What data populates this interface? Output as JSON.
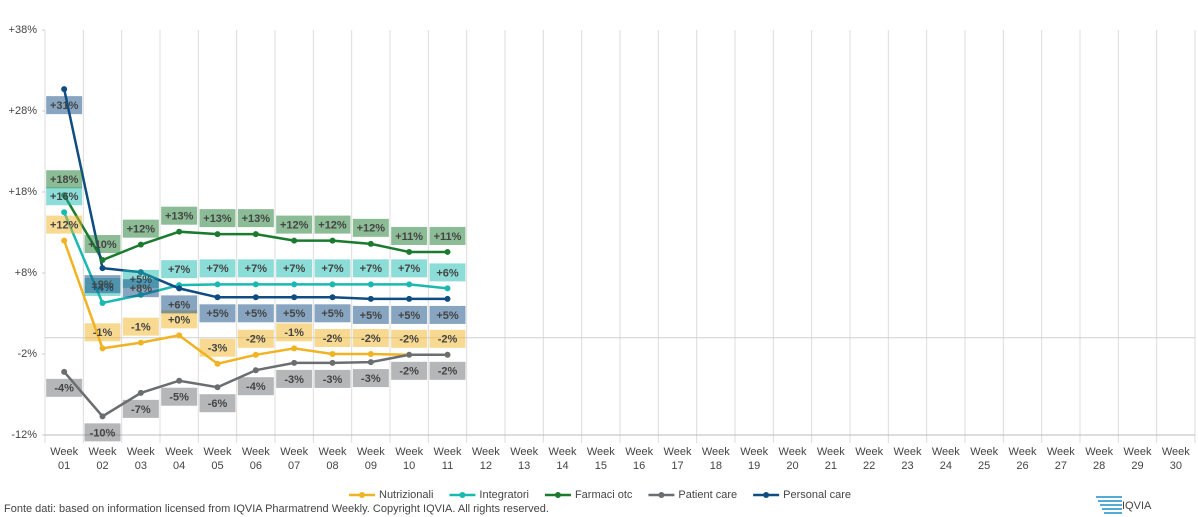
{
  "chart_data": {
    "type": "line",
    "categories": [
      "Week 01",
      "Week 02",
      "Week 03",
      "Week 04",
      "Week 05",
      "Week 06",
      "Week 07",
      "Week 08",
      "Week 09",
      "Week 10",
      "Week 11",
      "Week 12",
      "Week 13",
      "Week 14",
      "Week 15",
      "Week 16",
      "Week 17",
      "Week 18",
      "Week 19",
      "Week 20",
      "Week 21",
      "Week 22",
      "Week 23",
      "Week 24",
      "Week 25",
      "Week 26",
      "Week 27",
      "Week 28",
      "Week 29",
      "Week 30"
    ],
    "ylim": [
      -12,
      38
    ],
    "yticks": [
      {
        "value": -12,
        "label": "-12%"
      },
      {
        "value": -2,
        "label": "-2%"
      },
      {
        "value": 8,
        "label": "+8%"
      },
      {
        "value": 18,
        "label": "+18%"
      },
      {
        "value": 28,
        "label": "+28%"
      },
      {
        "value": 38,
        "label": "+38%"
      }
    ],
    "series": [
      {
        "name": "Nutrizionali",
        "color": "#f0b323",
        "values": [
          12,
          -1.3,
          -0.6,
          0.3,
          -3.2,
          -2.1,
          -1.3,
          -2,
          -2,
          -2.1,
          -2.1,
          null,
          null,
          null,
          null,
          null,
          null,
          null,
          null,
          null,
          null,
          null,
          null,
          null,
          null,
          null,
          null,
          null,
          null,
          null
        ],
        "value_labels": [
          "+12%",
          "-1%",
          "-1%",
          "+0%",
          "-3%",
          "-2%",
          "-1%",
          "-2%",
          "-2%",
          "-2%",
          "-2%",
          null,
          null,
          null,
          null,
          null,
          null,
          null,
          null,
          null,
          null,
          null,
          null,
          null,
          null,
          null,
          null,
          null,
          null,
          null
        ]
      },
      {
        "name": "Integratori",
        "color": "#1ab9b0",
        "values": [
          15.5,
          4.3,
          5.3,
          6.5,
          6.6,
          6.6,
          6.6,
          6.6,
          6.6,
          6.6,
          6.1,
          null,
          null,
          null,
          null,
          null,
          null,
          null,
          null,
          null,
          null,
          null,
          null,
          null,
          null,
          null,
          null,
          null,
          null,
          null
        ],
        "value_labels": [
          "+16%",
          "+4%",
          "+5%",
          "+7%",
          "+7%",
          "+7%",
          "+7%",
          "+7%",
          "+7%",
          "+7%",
          "+6%",
          null,
          null,
          null,
          null,
          null,
          null,
          null,
          null,
          null,
          null,
          null,
          null,
          null,
          null,
          null,
          null,
          null,
          null,
          null
        ]
      },
      {
        "name": "Farmaci otc",
        "color": "#1a7a2e",
        "values": [
          17.6,
          9.6,
          11.5,
          13.1,
          12.8,
          12.8,
          12,
          12,
          11.6,
          10.6,
          10.6,
          null,
          null,
          null,
          null,
          null,
          null,
          null,
          null,
          null,
          null,
          null,
          null,
          null,
          null,
          null,
          null,
          null,
          null,
          null
        ],
        "value_labels": [
          "+18%",
          "+10%",
          "+12%",
          "+13%",
          "+13%",
          "+13%",
          "+12%",
          "+12%",
          "+12%",
          "+11%",
          "+11%",
          null,
          null,
          null,
          null,
          null,
          null,
          null,
          null,
          null,
          null,
          null,
          null,
          null,
          null,
          null,
          null,
          null,
          null,
          null
        ]
      },
      {
        "name": "Patient care",
        "color": "#6b6e70",
        "values": [
          -4.2,
          -9.7,
          -6.8,
          -5.3,
          -6.1,
          -4,
          -3.1,
          -3.1,
          -3,
          -2.1,
          -2.1,
          null,
          null,
          null,
          null,
          null,
          null,
          null,
          null,
          null,
          null,
          null,
          null,
          null,
          null,
          null,
          null,
          null,
          null,
          null
        ],
        "value_labels": [
          "-4%",
          "-10%",
          "-7%",
          "-5%",
          "-6%",
          "-4%",
          "-3%",
          "-3%",
          "-3%",
          "-2%",
          "-2%",
          null,
          null,
          null,
          null,
          null,
          null,
          null,
          null,
          null,
          null,
          null,
          null,
          null,
          null,
          null,
          null,
          null,
          null,
          null
        ]
      },
      {
        "name": "Personal care",
        "color": "#0f4c81",
        "values": [
          30.7,
          8.6,
          8.1,
          6.1,
          5,
          5,
          5,
          5,
          4.8,
          4.8,
          4.8,
          null,
          null,
          null,
          null,
          null,
          null,
          null,
          null,
          null,
          null,
          null,
          null,
          null,
          null,
          null,
          null,
          null,
          null,
          null
        ],
        "value_labels": [
          "+31%",
          "+9%",
          "+8%",
          "+6%",
          "+5%",
          "+5%",
          "+5%",
          "+5%",
          "+5%",
          "+5%",
          "+5%",
          null,
          null,
          null,
          null,
          null,
          null,
          null,
          null,
          null,
          null,
          null,
          null,
          null,
          null,
          null,
          null,
          null,
          null,
          null
        ]
      }
    ],
    "source": "Fonte dati: based on information licensed from IQVIA Pharmatrend Weekly. Copyright IQVIA. All rights reserved.",
    "logo": "IQVIA"
  }
}
